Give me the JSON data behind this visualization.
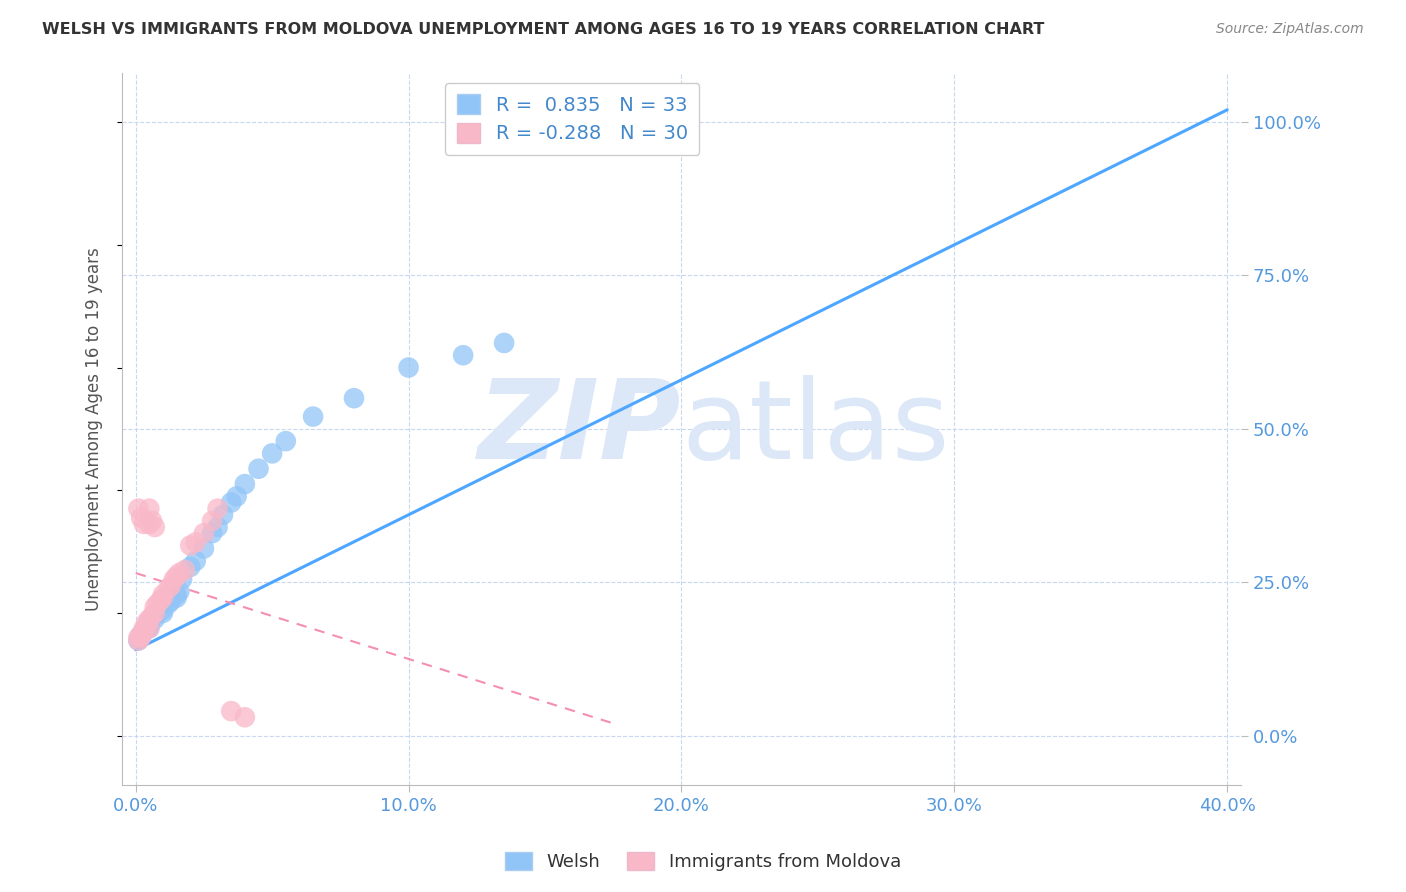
{
  "title": "WELSH VS IMMIGRANTS FROM MOLDOVA UNEMPLOYMENT AMONG AGES 16 TO 19 YEARS CORRELATION CHART",
  "source": "Source: ZipAtlas.com",
  "ylabel": "Unemployment Among Ages 16 to 19 years",
  "x_ticks": [
    "0.0%",
    "10.0%",
    "20.0%",
    "30.0%",
    "40.0%"
  ],
  "x_tick_vals": [
    0.0,
    0.1,
    0.2,
    0.3,
    0.4
  ],
  "y_ticks_right": [
    "100.0%",
    "75.0%",
    "50.0%",
    "25.0%",
    "0.0%"
  ],
  "y_tick_vals_right": [
    1.0,
    0.75,
    0.5,
    0.25,
    0.0
  ],
  "xlim": [
    -0.005,
    0.405
  ],
  "ylim": [
    -0.08,
    1.08
  ],
  "welsh_R": 0.835,
  "welsh_N": 33,
  "moldova_R": -0.288,
  "moldova_N": 30,
  "welsh_color": "#92c5f7",
  "moldova_color": "#f9b8c8",
  "welsh_line_color": "#4da6ff",
  "moldova_line_color": "#f48fb1",
  "background_color": "#ffffff",
  "grid_color": "#c8d8ee",
  "watermark_color": "#dce8f8",
  "welsh_scatter_x": [
    0.001,
    0.002,
    0.003,
    0.004,
    0.005,
    0.005,
    0.007,
    0.007,
    0.01,
    0.01,
    0.012,
    0.013,
    0.015,
    0.015,
    0.016,
    0.017,
    0.02,
    0.022,
    0.025,
    0.028,
    0.03,
    0.032,
    0.035,
    0.037,
    0.04,
    0.045,
    0.05,
    0.055,
    0.065,
    0.08,
    0.1,
    0.12,
    0.135
  ],
  "welsh_scatter_y": [
    0.155,
    0.165,
    0.17,
    0.175,
    0.175,
    0.18,
    0.19,
    0.195,
    0.2,
    0.205,
    0.215,
    0.22,
    0.225,
    0.23,
    0.235,
    0.255,
    0.275,
    0.285,
    0.305,
    0.33,
    0.34,
    0.36,
    0.38,
    0.39,
    0.41,
    0.435,
    0.46,
    0.48,
    0.52,
    0.55,
    0.6,
    0.62,
    0.64
  ],
  "moldova_scatter_x": [
    0.001,
    0.001,
    0.002,
    0.002,
    0.003,
    0.003,
    0.004,
    0.004,
    0.005,
    0.005,
    0.006,
    0.007,
    0.007,
    0.008,
    0.009,
    0.01,
    0.01,
    0.012,
    0.013,
    0.014,
    0.015,
    0.016,
    0.018,
    0.02,
    0.022,
    0.025,
    0.028,
    0.03,
    0.035,
    0.04
  ],
  "moldova_scatter_y": [
    0.155,
    0.16,
    0.16,
    0.165,
    0.17,
    0.175,
    0.18,
    0.185,
    0.175,
    0.19,
    0.195,
    0.2,
    0.21,
    0.215,
    0.22,
    0.225,
    0.23,
    0.24,
    0.245,
    0.255,
    0.26,
    0.265,
    0.27,
    0.31,
    0.315,
    0.33,
    0.35,
    0.37,
    0.04,
    0.03
  ],
  "moldova_extra_x": [
    0.001,
    0.002,
    0.003,
    0.005,
    0.005,
    0.006,
    0.007
  ],
  "moldova_extra_y": [
    0.37,
    0.355,
    0.345,
    0.345,
    0.37,
    0.35,
    0.34
  ],
  "welsh_line_x": [
    0.0,
    0.4
  ],
  "welsh_line_y": [
    0.14,
    1.02
  ],
  "moldova_line_x": [
    0.0,
    0.175
  ],
  "moldova_line_y": [
    0.265,
    0.02
  ]
}
